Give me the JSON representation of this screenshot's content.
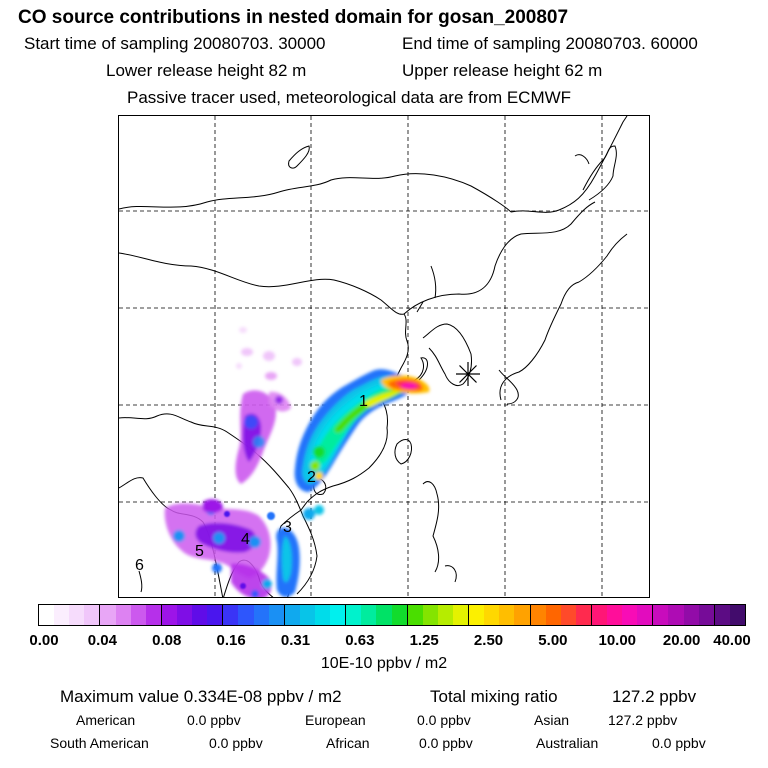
{
  "title": "CO  source contributions in nested domain for gosan_200807",
  "start_label": "Start time of sampling 20080703. 30000",
  "end_label": "End time of sampling 20080703. 60000",
  "lower_label": "Lower release height   82 m",
  "upper_label": "Upper release height   62 m",
  "tracer_note": "Passive tracer used, meteorological data are from ECMWF",
  "colorbar": {
    "ticks": [
      "0.00",
      "0.04",
      "0.08",
      "0.16",
      "0.31",
      "0.63",
      "1.25",
      "2.50",
      "5.00",
      "10.00",
      "20.00",
      "40.00"
    ],
    "colors": [
      "#ffffff",
      "#fbeefe",
      "#f6dcfc",
      "#f0c6fa",
      "#e8a6f6",
      "#dd82f2",
      "#cc59ee",
      "#b630ea",
      "#9d14e8",
      "#7f0ee6",
      "#600ce8",
      "#4a16ee",
      "#3a34f6",
      "#2e56fc",
      "#2473fa",
      "#1a90f4",
      "#10a9ee",
      "#08c4e8",
      "#00dcea",
      "#00f0ee",
      "#00f2cc",
      "#00ec9e",
      "#00e266",
      "#12dc2c",
      "#4ade00",
      "#84e400",
      "#b6ec00",
      "#e4f200",
      "#fcf000",
      "#ffd800",
      "#ffbe00",
      "#ffa200",
      "#ff8400",
      "#ff6600",
      "#ff4a2a",
      "#ff2a4e",
      "#ff1676",
      "#ff0e9a",
      "#f80cb6",
      "#e20cbe",
      "#c80cbc",
      "#ae0cb4",
      "#920ca8",
      "#760c98",
      "#5c0c84",
      "#420c6c"
    ],
    "units": "10E-10 ppbv / m2"
  },
  "summary": {
    "max_label": "Maximum value  0.334E-08 ppbv / m2",
    "total_label": "Total mixing ratio",
    "total_value": "127.2 ppbv",
    "american": "American",
    "american_value": "0.0 ppbv",
    "european": "European",
    "european_value": "0.0 ppbv",
    "asian": "Asian",
    "asian_value": "127.2 ppbv",
    "south_american": "South American",
    "south_american_value": "0.0 ppbv",
    "african": "African",
    "african_value": "0.0 ppbv",
    "australian": "Australian",
    "australian_value": "0.0 ppbv"
  },
  "regions": [
    "1",
    "2",
    "3",
    "4",
    "5",
    "6"
  ],
  "receptor_marker": "asterisk-icon"
}
